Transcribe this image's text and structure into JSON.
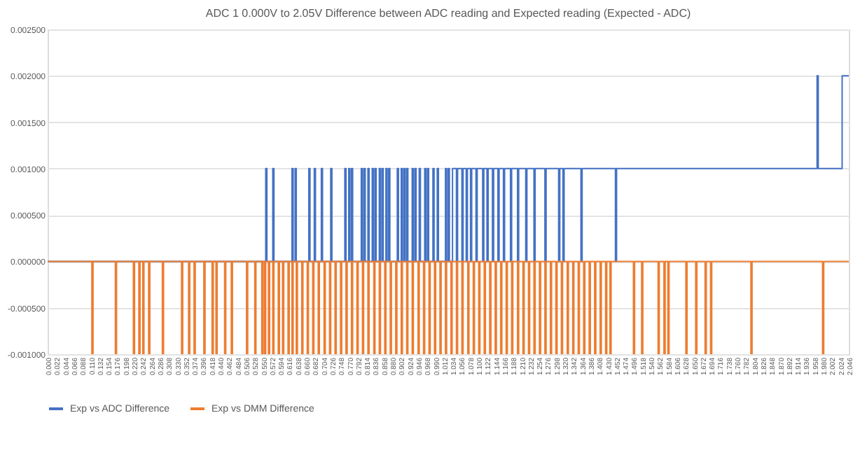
{
  "chart_data": {
    "type": "step",
    "title": "ADC 1 0.000V to 2.05V Difference between ADC reading and Expected reading (Expected - ADC)",
    "xlim": [
      0,
      2.046
    ],
    "xticks": [
      {
        "value": 0,
        "label": "0.000"
      },
      0.022,
      0.044,
      0.066,
      0.088,
      {
        "value": 0.11,
        "label": "0.110"
      },
      0.132,
      0.154,
      0.176,
      0.198,
      {
        "value": 0.22,
        "label": "0.220"
      },
      0.242,
      0.264,
      0.286,
      0.308,
      {
        "value": 0.33,
        "label": "0.330"
      },
      0.352,
      0.374,
      0.396,
      0.418,
      {
        "value": 0.44,
        "label": "0.440"
      },
      0.462,
      0.484,
      0.506,
      0.528,
      {
        "value": 0.55,
        "label": "0.550"
      },
      0.572,
      0.594,
      0.616,
      0.638,
      {
        "value": 0.66,
        "label": "0.660"
      },
      0.682,
      0.704,
      0.726,
      0.748,
      {
        "value": 0.77,
        "label": "0.770"
      },
      0.792,
      0.814,
      0.836,
      0.858,
      {
        "value": 0.88,
        "label": "0.880"
      },
      0.902,
      0.924,
      0.946,
      0.968,
      {
        "value": 0.99,
        "label": "0.990"
      },
      1.012,
      1.034,
      1.056,
      1.078,
      {
        "value": 1.1,
        "label": "1.100"
      },
      1.122,
      1.144,
      1.166,
      1.188,
      {
        "value": 1.21,
        "label": "1.210"
      },
      1.232,
      1.254,
      1.276,
      1.298,
      {
        "value": 1.32,
        "label": "1.320"
      },
      1.342,
      1.364,
      1.386,
      1.408,
      {
        "value": 1.43,
        "label": "1.430"
      },
      1.452,
      1.474,
      1.496,
      1.518,
      {
        "value": 1.54,
        "label": "1.540"
      },
      1.562,
      1.584,
      1.606,
      1.628,
      {
        "value": 1.65,
        "label": "1.650"
      },
      1.672,
      1.694,
      1.716,
      1.738,
      {
        "value": 1.76,
        "label": "1.760"
      },
      1.782,
      1.804,
      1.826,
      1.848,
      {
        "value": 1.87,
        "label": "1.870"
      },
      1.892,
      1.914,
      1.936,
      1.958,
      {
        "value": 1.98,
        "label": "1.980"
      },
      2.002,
      2.024,
      2.046
    ],
    "ylim": [
      -0.001,
      0.0025
    ],
    "yticks": [
      {
        "value": -0.001,
        "label": "-0.001000"
      },
      {
        "value": -0.0005,
        "label": "-0.000500"
      },
      {
        "value": 0,
        "label": "0.000000"
      },
      {
        "value": 0.0005,
        "label": "0.000500"
      },
      {
        "value": 0.001,
        "label": "0.001000"
      },
      {
        "value": 0.0015,
        "label": "0.001500"
      },
      {
        "value": 0.002,
        "label": "0.002000"
      },
      {
        "value": 0.0025,
        "label": "0.002500"
      }
    ],
    "grid": "y",
    "legend": "bottom",
    "series": [
      {
        "name": "Exp vs ADC Difference",
        "color": "#4472c4",
        "x": [
          0,
          0.557,
          0.56,
          0.575,
          0.578,
          0.624,
          0.627,
          0.632,
          0.635,
          0.667,
          0.67,
          0.681,
          0.684,
          0.699,
          0.702,
          0.723,
          0.726,
          0.759,
          0.762,
          0.769,
          0.772,
          0.776,
          0.779,
          0.801,
          0.804,
          0.808,
          0.811,
          0.818,
          0.821,
          0.829,
          0.832,
          0.836,
          0.839,
          0.847,
          0.85,
          0.854,
          0.857,
          0.864,
          0.867,
          0.871,
          0.874,
          0.893,
          0.896,
          0.903,
          0.906,
          0.91,
          0.913,
          0.917,
          0.92,
          0.931,
          0.934,
          0.938,
          0.941,
          0.949,
          0.952,
          0.963,
          0.966,
          0.97,
          0.973,
          0.984,
          0.987,
          0.995,
          0.998,
          1.016,
          1.019,
          1.023,
          1.026,
          1.034,
          1.044,
          1.047,
          1.058,
          1.061,
          1.069,
          1.072,
          1.08,
          1.083,
          1.094,
          1.097,
          1.111,
          1.114,
          1.122,
          1.125,
          1.136,
          1.139,
          1.15,
          1.153,
          1.164,
          1.167,
          1.182,
          1.185,
          1.2,
          1.203,
          1.221,
          1.224,
          1.242,
          1.245,
          1.27,
          1.273,
          1.305,
          1.308,
          1.316,
          1.319,
          1.362,
          1.365,
          1.45,
          1.453,
          1.965,
          1.968,
          2.029,
          2.046
        ],
        "values": [
          0,
          0.001,
          0,
          0.001,
          0,
          0.001,
          0,
          0.001,
          0,
          0.001,
          0,
          0.001,
          0,
          0.001,
          0,
          0.001,
          0,
          0.001,
          0,
          0.001,
          0,
          0.001,
          0,
          0.001,
          0,
          0.001,
          0,
          0.001,
          0,
          0.001,
          0,
          0.001,
          0,
          0.001,
          0,
          0.001,
          0,
          0.001,
          0,
          0.001,
          0,
          0.001,
          0,
          0.001,
          0,
          0.001,
          0,
          0.001,
          0,
          0.001,
          0,
          0.001,
          0,
          0.001,
          0,
          0.001,
          0,
          0.001,
          0,
          0.001,
          0,
          0.001,
          0,
          0.001,
          0,
          0.001,
          0,
          0.001,
          0,
          0.001,
          0,
          0.001,
          0,
          0.001,
          0,
          0.001,
          0,
          0.001,
          0,
          0.001,
          0,
          0.001,
          0,
          0.001,
          0,
          0.001,
          0,
          0.001,
          0,
          0.001,
          0,
          0.001,
          0,
          0.001,
          0,
          0.001,
          0,
          0.001,
          0,
          0.001,
          0,
          0.001,
          0,
          0.001,
          0,
          0.001,
          0.002,
          0.001,
          0.002,
          0.002
        ]
      },
      {
        "name": "Exp vs DMM Difference",
        "color": "#ed7d31",
        "x": [
          0,
          0.113,
          0.116,
          0.173,
          0.176,
          0.219,
          0.222,
          0.233,
          0.236,
          0.243,
          0.246,
          0.258,
          0.261,
          0.293,
          0.296,
          0.342,
          0.345,
          0.36,
          0.363,
          0.374,
          0.377,
          0.399,
          0.402,
          0.42,
          0.423,
          0.43,
          0.433,
          0.452,
          0.455,
          0.469,
          0.472,
          0.508,
          0.511,
          0.529,
          0.532,
          0.547,
          0.55,
          0.554,
          0.557,
          0.564,
          0.567,
          0.575,
          0.578,
          0.589,
          0.592,
          0.6,
          0.603,
          0.614,
          0.617,
          0.624,
          0.627,
          0.635,
          0.638,
          0.649,
          0.652,
          0.663,
          0.666,
          0.677,
          0.68,
          0.691,
          0.694,
          0.706,
          0.709,
          0.72,
          0.723,
          0.734,
          0.737,
          0.748,
          0.751,
          0.762,
          0.765,
          0.776,
          0.779,
          0.79,
          0.793,
          0.804,
          0.807,
          0.818,
          0.821,
          0.833,
          0.836,
          0.847,
          0.85,
          0.861,
          0.864,
          0.875,
          0.878,
          0.889,
          0.892,
          0.903,
          0.906,
          0.917,
          0.92,
          0.931,
          0.934,
          0.946,
          0.949,
          0.96,
          0.963,
          0.974,
          0.977,
          0.988,
          0.991,
          1.002,
          1.005,
          1.016,
          1.019,
          1.03,
          1.033,
          1.044,
          1.047,
          1.058,
          1.061,
          1.073,
          1.076,
          1.087,
          1.09,
          1.101,
          1.104,
          1.115,
          1.118,
          1.129,
          1.132,
          1.143,
          1.146,
          1.157,
          1.16,
          1.171,
          1.174,
          1.185,
          1.188,
          1.2,
          1.203,
          1.214,
          1.217,
          1.228,
          1.231,
          1.242,
          1.245,
          1.256,
          1.259,
          1.27,
          1.273,
          1.284,
          1.287,
          1.298,
          1.301,
          1.312,
          1.315,
          1.327,
          1.33,
          1.341,
          1.344,
          1.355,
          1.358,
          1.369,
          1.372,
          1.383,
          1.386,
          1.397,
          1.4,
          1.411,
          1.414,
          1.425,
          1.428,
          1.436,
          1.439,
          1.496,
          1.499,
          1.517,
          1.52,
          1.559,
          1.562,
          1.574,
          1.577,
          1.584,
          1.587,
          1.63,
          1.633,
          1.655,
          1.658,
          1.679,
          1.682,
          1.693,
          1.696,
          1.796,
          1.799,
          1.979,
          1.982,
          2.046
        ],
        "values": [
          0,
          -0.001,
          0,
          -0.001,
          0,
          -0.001,
          0,
          -0.001,
          0,
          -0.001,
          0,
          -0.001,
          0,
          -0.001,
          0,
          -0.001,
          0,
          -0.001,
          0,
          -0.001,
          0,
          -0.001,
          0,
          -0.001,
          0,
          -0.001,
          0,
          -0.001,
          0,
          -0.001,
          0,
          -0.001,
          0,
          -0.001,
          0,
          -0.001,
          0,
          -0.001,
          0,
          -0.001,
          0,
          -0.001,
          0,
          -0.001,
          0,
          -0.001,
          0,
          -0.001,
          0,
          -0.001,
          0,
          -0.001,
          0,
          -0.001,
          0,
          -0.001,
          0,
          -0.001,
          0,
          -0.001,
          0,
          -0.001,
          0,
          -0.001,
          0,
          -0.001,
          0,
          -0.001,
          0,
          -0.001,
          0,
          -0.001,
          0,
          -0.001,
          0,
          -0.001,
          0,
          -0.001,
          0,
          -0.001,
          0,
          -0.001,
          0,
          -0.001,
          0,
          -0.001,
          0,
          -0.001,
          0,
          -0.001,
          0,
          -0.001,
          0,
          -0.001,
          0,
          -0.001,
          0,
          -0.001,
          0,
          -0.001,
          0,
          -0.001,
          0,
          -0.001,
          0,
          -0.001,
          0,
          -0.001,
          0,
          -0.001,
          0,
          -0.001,
          0,
          -0.001,
          0,
          -0.001,
          0,
          -0.001,
          0,
          -0.001,
          0,
          -0.001,
          0,
          -0.001,
          0,
          -0.001,
          0,
          -0.001,
          0,
          -0.001,
          0,
          -0.001,
          0,
          -0.001,
          0,
          -0.001,
          0,
          -0.001,
          0,
          -0.001,
          0,
          -0.001,
          0,
          -0.001,
          0,
          -0.001,
          0,
          -0.001,
          0,
          -0.001,
          0,
          -0.001,
          0,
          -0.001,
          0,
          -0.001,
          0,
          -0.001,
          0,
          -0.001,
          0,
          -0.001,
          0,
          -0.001,
          0,
          -0.001,
          0,
          -0.001,
          0,
          -0.001,
          0,
          -0.001,
          0,
          -0.001,
          0,
          -0.001,
          0,
          -0.001,
          0,
          -0.001,
          0,
          -0.001,
          0,
          -0.001,
          0,
          -0.001,
          0,
          -0.001,
          0,
          0
        ]
      }
    ]
  }
}
